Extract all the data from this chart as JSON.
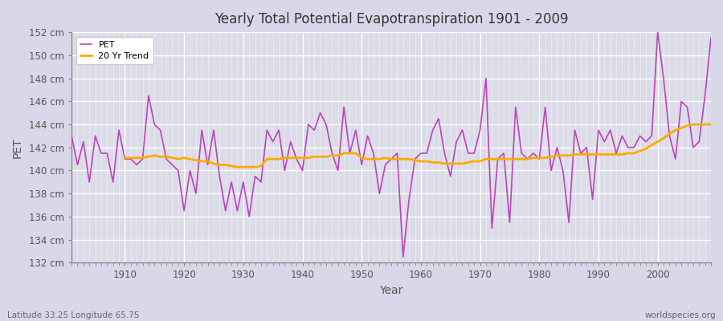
{
  "title": "Yearly Total Potential Evapotranspiration 1901 - 2009",
  "xlabel": "Year",
  "ylabel": "PET",
  "subtitle_left": "Latitude 33.25 Longitude 65.75",
  "subtitle_right": "worldspecies.org",
  "ylim": [
    132,
    152
  ],
  "xlim": [
    1901,
    2009
  ],
  "ytick_step": 2,
  "pet_color": "#bb44bb",
  "trend_color": "#ffaa00",
  "fig_bg_color": "#d8d8e8",
  "plot_bg_color": "#dcdce8",
  "years": [
    1901,
    1902,
    1903,
    1904,
    1905,
    1906,
    1907,
    1908,
    1909,
    1910,
    1911,
    1912,
    1913,
    1914,
    1915,
    1916,
    1917,
    1918,
    1919,
    1920,
    1921,
    1922,
    1923,
    1924,
    1925,
    1926,
    1927,
    1928,
    1929,
    1930,
    1931,
    1932,
    1933,
    1934,
    1935,
    1936,
    1937,
    1938,
    1939,
    1940,
    1941,
    1942,
    1943,
    1944,
    1945,
    1946,
    1947,
    1948,
    1949,
    1950,
    1951,
    1952,
    1953,
    1954,
    1955,
    1956,
    1957,
    1958,
    1959,
    1960,
    1961,
    1962,
    1963,
    1964,
    1965,
    1966,
    1967,
    1968,
    1969,
    1970,
    1971,
    1972,
    1973,
    1974,
    1975,
    1976,
    1977,
    1978,
    1979,
    1980,
    1981,
    1982,
    1983,
    1984,
    1985,
    1986,
    1987,
    1988,
    1989,
    1990,
    1991,
    1992,
    1993,
    1994,
    1995,
    1996,
    1997,
    1998,
    1999,
    2000,
    2001,
    2002,
    2003,
    2004,
    2005,
    2006,
    2007,
    2008,
    2009
  ],
  "pet_values": [
    143.0,
    140.5,
    142.5,
    139.0,
    143.0,
    141.5,
    141.5,
    139.0,
    143.5,
    141.0,
    141.0,
    140.5,
    141.0,
    146.5,
    144.0,
    143.5,
    141.0,
    140.5,
    140.0,
    136.5,
    140.0,
    138.0,
    143.5,
    140.5,
    143.5,
    139.5,
    136.5,
    139.0,
    136.5,
    139.0,
    136.0,
    139.5,
    139.0,
    143.5,
    142.5,
    143.5,
    140.0,
    142.5,
    141.0,
    140.0,
    144.0,
    143.5,
    145.0,
    144.0,
    141.5,
    140.0,
    145.5,
    141.5,
    143.5,
    140.5,
    143.0,
    141.5,
    138.0,
    140.5,
    141.0,
    141.5,
    132.5,
    137.5,
    141.0,
    141.5,
    141.5,
    143.5,
    144.5,
    141.5,
    139.5,
    142.5,
    143.5,
    141.5,
    141.5,
    143.5,
    148.0,
    135.0,
    141.0,
    141.5,
    135.5,
    145.5,
    141.5,
    141.0,
    141.5,
    141.0,
    145.5,
    140.0,
    142.0,
    140.0,
    135.5,
    143.5,
    141.5,
    142.0,
    137.5,
    143.5,
    142.5,
    143.5,
    141.5,
    143.0,
    142.0,
    142.0,
    143.0,
    142.5,
    143.0,
    152.0,
    148.0,
    143.0,
    141.0,
    146.0,
    145.5,
    142.0,
    142.5,
    146.5,
    151.5
  ],
  "trend_values": [
    null,
    null,
    null,
    null,
    null,
    null,
    null,
    null,
    null,
    141.1,
    141.1,
    141.1,
    141.1,
    141.2,
    141.3,
    141.2,
    141.2,
    141.1,
    141.0,
    141.1,
    141.0,
    140.9,
    140.8,
    140.8,
    140.6,
    140.5,
    140.5,
    140.4,
    140.3,
    140.3,
    140.3,
    140.3,
    140.4,
    141.0,
    141.0,
    141.0,
    141.1,
    141.1,
    141.1,
    141.1,
    141.1,
    141.2,
    141.2,
    141.2,
    141.3,
    141.3,
    141.5,
    141.5,
    141.5,
    141.1,
    141.0,
    141.0,
    141.0,
    141.1,
    141.0,
    141.0,
    141.0,
    141.0,
    140.9,
    140.8,
    140.8,
    140.7,
    140.7,
    140.6,
    140.6,
    140.6,
    140.6,
    140.7,
    140.8,
    140.8,
    141.0,
    141.0,
    141.0,
    141.0,
    141.0,
    141.0,
    141.0,
    141.0,
    141.1,
    141.1,
    141.1,
    141.2,
    141.3,
    141.3,
    141.3,
    141.4,
    141.4,
    141.4,
    141.4,
    141.4,
    141.4,
    141.4,
    141.4,
    141.4,
    141.5,
    141.5,
    141.7,
    141.9,
    142.2,
    142.5,
    142.8,
    143.2,
    143.5,
    143.7,
    143.9,
    144.0,
    144.0,
    144.0,
    144.0
  ]
}
